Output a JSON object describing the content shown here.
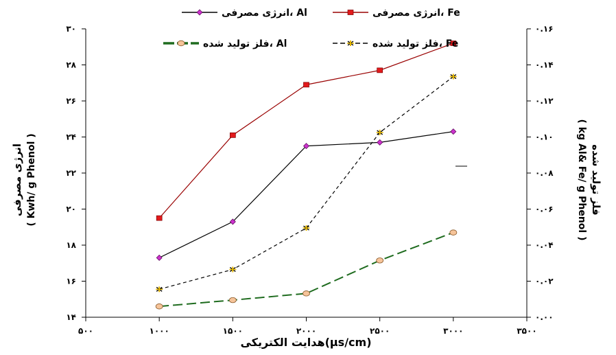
{
  "chart_data": {
    "type": "line",
    "xlabel": "هدایت الکتریکی(µs/cm)",
    "ylabel_left": [
      "انرژی مصرفی",
      "( Kwh/ g Phenol )"
    ],
    "ylabel_right": [
      "فلز تولید شده",
      "( kg Al& Fe/ g Phenol )"
    ],
    "xlim": [
      500,
      3500
    ],
    "ylim_left": [
      14,
      30
    ],
    "ylim_right": [
      0,
      0.16
    ],
    "x_ticks": [
      "۵۰۰",
      "۱۰۰۰",
      "۱۵۰۰",
      "۲۰۰۰",
      "۲۵۰۰",
      "۳۰۰۰",
      "۳۵۰۰"
    ],
    "y_left_ticks": [
      "۱۴",
      "۱۶",
      "۱۸",
      "۲۰",
      "۲۲",
      "۲۴",
      "۲۶",
      "۲۸",
      "۳۰"
    ],
    "y_right_ticks": [
      "۰.۰۰",
      "۰.۰۲",
      "۰.۰۴",
      "۰.۰۶",
      "۰.۰۸",
      "۰.۱۰",
      "۰.۱۲",
      "۰.۱۴",
      "۰.۱۶"
    ],
    "x": [
      1000,
      1500,
      2000,
      2500,
      3000
    ],
    "series": [
      {
        "name": "انرژی مصرفی، Al",
        "axis": "left",
        "values": [
          17.3,
          19.3,
          23.5,
          23.7,
          24.3
        ],
        "color": "#000000",
        "marker": "diamond",
        "marker_color": "#cc33cc",
        "dash": "solid"
      },
      {
        "name": "انرژی مصرفی، Fe",
        "axis": "left",
        "values": [
          19.5,
          24.1,
          26.9,
          27.7,
          29.2
        ],
        "color": "#990000",
        "marker": "square",
        "marker_color": "#e31a1c",
        "dash": "solid"
      },
      {
        "name": "فلز تولید شده، Al",
        "axis": "right",
        "values": [
          0.006,
          0.0095,
          0.0132,
          0.0315,
          0.047
        ],
        "color": "#1e6b1e",
        "marker": "circle",
        "marker_color": "#f6c49a",
        "dash": "long-dash"
      },
      {
        "name": "فلز تولید شده، Fe",
        "axis": "right",
        "values": [
          0.0155,
          0.0265,
          0.0495,
          0.1025,
          0.1335
        ],
        "color": "#000000",
        "marker": "asterisk",
        "marker_color": "#e6b800",
        "dash": "dashed"
      }
    ],
    "legend": {
      "placement": "top"
    }
  }
}
